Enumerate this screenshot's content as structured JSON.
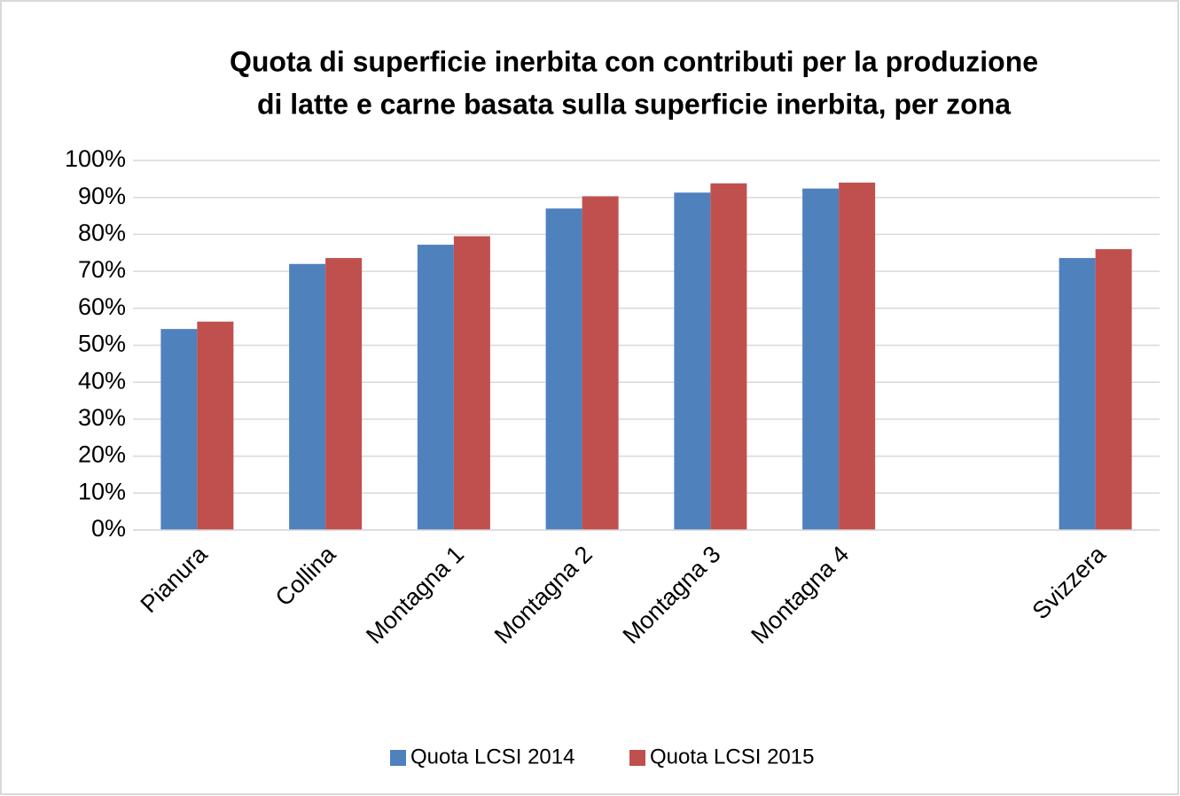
{
  "chart_data": {
    "type": "bar",
    "title": [
      "Quota di superficie inerbita con contributi per la produzione",
      "di latte e carne basata sulla superficie inerbita, per zona"
    ],
    "categories": [
      "Pianura",
      "Collina",
      "Montagna 1",
      "Montagna 2",
      "Montagna 3",
      "Montagna 4",
      null,
      "Svizzera"
    ],
    "series": [
      {
        "name": "Quota LCSI 2014",
        "color": "#4f81bd",
        "values": [
          54.4,
          72,
          77.2,
          87,
          91.3,
          92.4,
          null,
          73.6
        ]
      },
      {
        "name": "Quota LCSI 2015",
        "color": "#c0504d",
        "values": [
          56.4,
          73.6,
          79.5,
          90.3,
          93.8,
          94,
          null,
          76
        ]
      }
    ],
    "ylim": [
      0,
      100
    ],
    "yticks": [
      {
        "value": 0,
        "label": "0%"
      },
      {
        "value": 10,
        "label": "10%"
      },
      {
        "value": 20,
        "label": "20%"
      },
      {
        "value": 30,
        "label": "30%"
      },
      {
        "value": 40,
        "label": "40%"
      },
      {
        "value": 50,
        "label": "50%"
      },
      {
        "value": 60,
        "label": "60%"
      },
      {
        "value": 70,
        "label": "70%"
      },
      {
        "value": 80,
        "label": "80%"
      },
      {
        "value": 90,
        "label": "90%"
      },
      {
        "value": 100,
        "label": "100%"
      }
    ],
    "grid": true,
    "legend": "bottom"
  }
}
